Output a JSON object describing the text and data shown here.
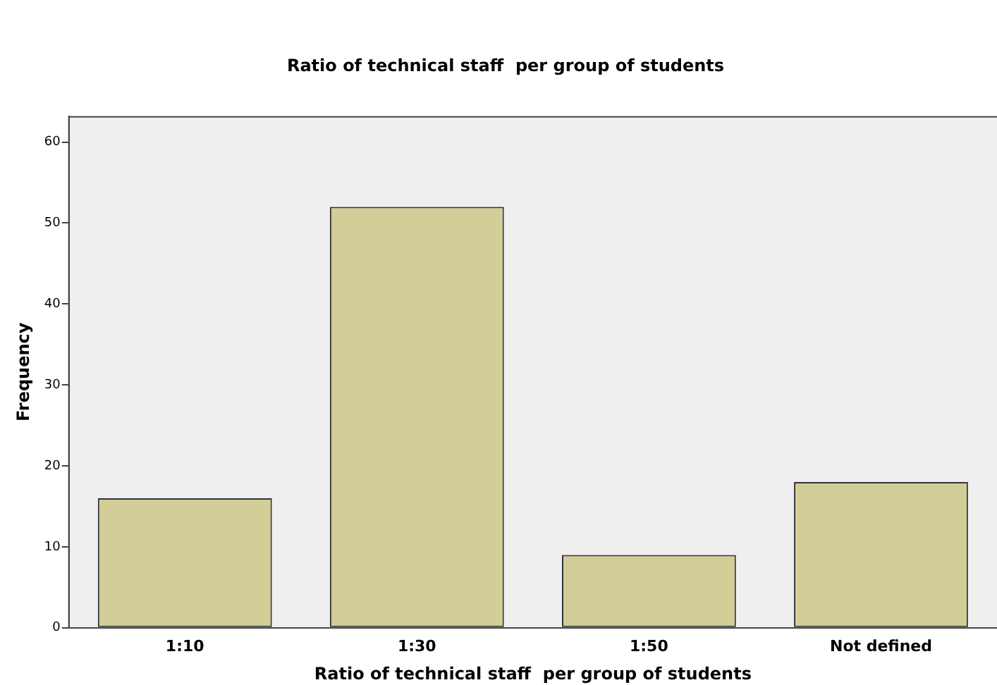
{
  "chart_data": {
    "type": "bar",
    "title": "Ratio of technical staff  per group of students",
    "xlabel": "Ratio of technical staff  per group of students",
    "ylabel": "Frequency",
    "categories": [
      "1:10",
      "1:30",
      "1:50",
      "Not defined"
    ],
    "values": [
      16,
      52,
      9,
      18
    ],
    "color": "#d3ce97",
    "ylim": [
      0,
      63.2
    ],
    "yticks": [
      0,
      10,
      20,
      30,
      40,
      50,
      60
    ],
    "grid": false,
    "legend": false
  }
}
